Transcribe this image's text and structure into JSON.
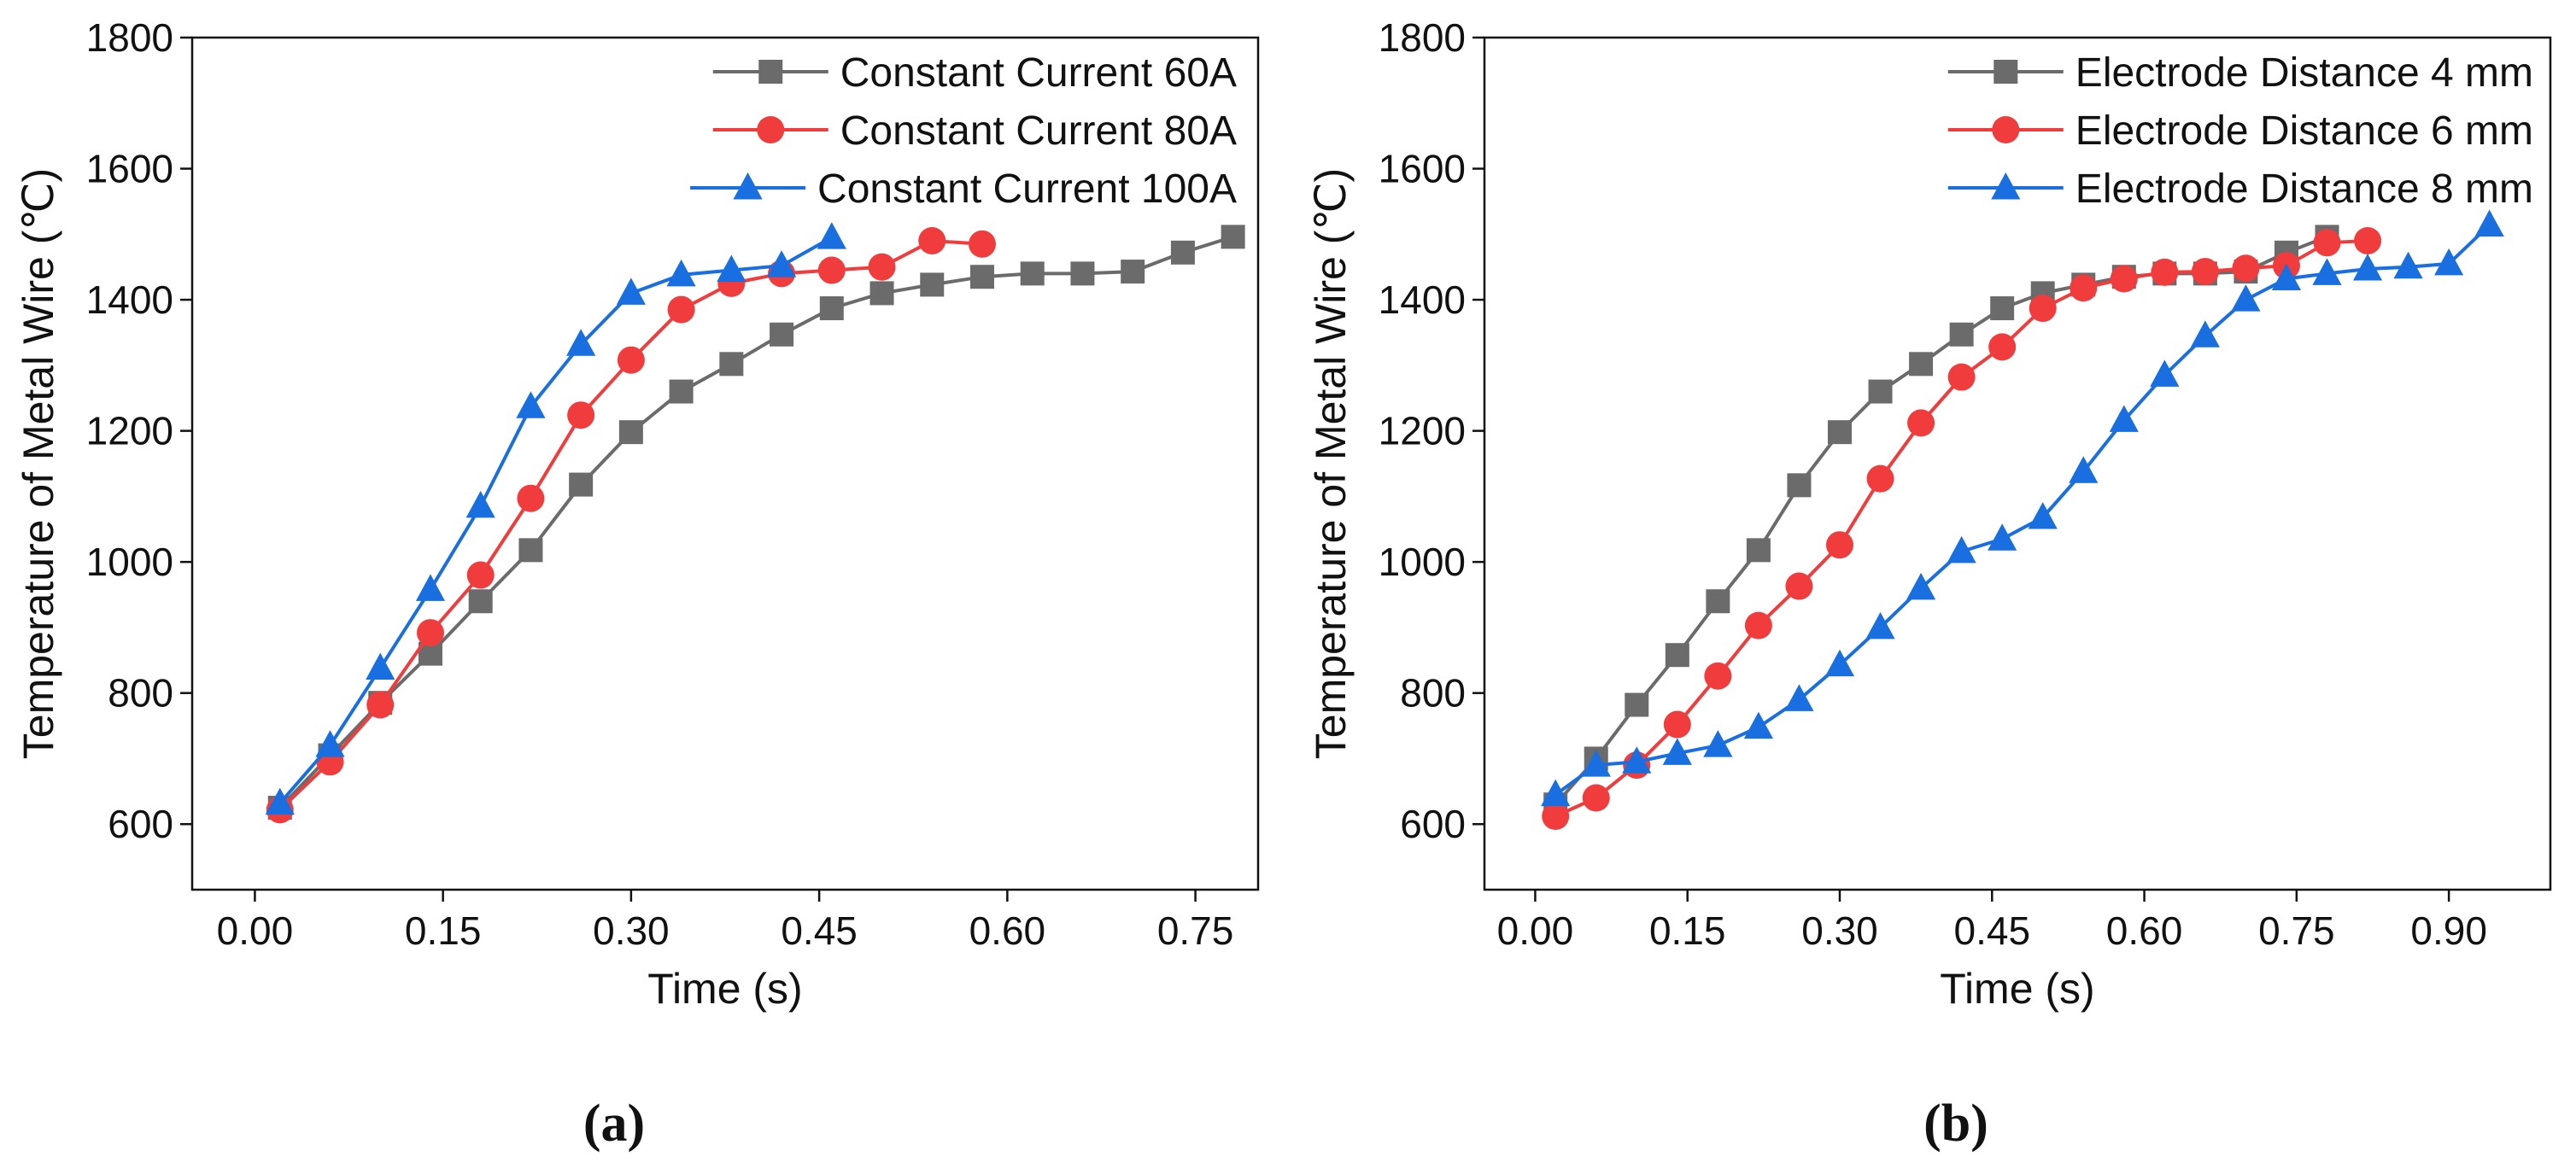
{
  "chart_data": [
    {
      "type": "line",
      "panel_label": "(a)",
      "xlabel": "Time (s)",
      "ylabel": "Temperature of Metal Wire (℃)",
      "xlim": [
        -0.05,
        0.8
      ],
      "ylim": [
        500,
        1800
      ],
      "xticks": [
        0.0,
        0.15,
        0.3,
        0.45,
        0.6,
        0.75
      ],
      "xtick_labels": [
        "0.00",
        "0.15",
        "0.30",
        "0.45",
        "0.60",
        "0.75"
      ],
      "yticks": [
        600,
        800,
        1000,
        1200,
        1400,
        1600,
        1800
      ],
      "ytick_labels": [
        "600",
        "800",
        "1000",
        "1200",
        "1400",
        "1600",
        "1800"
      ],
      "legend_position": "top-right",
      "series": [
        {
          "name": "Constant Current 60A",
          "marker": "square",
          "color": "#6b6b6b",
          "x": [
            0.02,
            0.06,
            0.1,
            0.14,
            0.18,
            0.22,
            0.26,
            0.3,
            0.34,
            0.38,
            0.42,
            0.46,
            0.5,
            0.54,
            0.58,
            0.62,
            0.66,
            0.7,
            0.74,
            0.78
          ],
          "y": [
            625,
            705,
            785,
            860,
            940,
            1018,
            1118,
            1198,
            1260,
            1302,
            1347,
            1387,
            1410,
            1423,
            1435,
            1440,
            1440,
            1443,
            1472,
            1496
          ]
        },
        {
          "name": "Constant Current 80A",
          "marker": "circle",
          "color": "#f03c3c",
          "x": [
            0.02,
            0.06,
            0.1,
            0.14,
            0.18,
            0.22,
            0.26,
            0.3,
            0.34,
            0.38,
            0.42,
            0.46,
            0.5,
            0.54,
            0.58
          ],
          "y": [
            622,
            695,
            782,
            892,
            980,
            1097,
            1224,
            1308,
            1385,
            1425,
            1440,
            1445,
            1450,
            1490,
            1485
          ]
        },
        {
          "name": "Constant Current 100A",
          "marker": "triangle",
          "color": "#1a6fe0",
          "x": [
            0.02,
            0.06,
            0.1,
            0.14,
            0.18,
            0.22,
            0.26,
            0.3,
            0.34,
            0.38,
            0.42,
            0.46
          ],
          "y": [
            632,
            720,
            838,
            958,
            1085,
            1237,
            1332,
            1410,
            1438,
            1445,
            1452,
            1495
          ]
        }
      ]
    },
    {
      "type": "line",
      "panel_label": "(b)",
      "xlabel": "Time (s)",
      "ylabel": "Temperature of Metal Wire (℃)",
      "xlim": [
        -0.05,
        1.0
      ],
      "ylim": [
        500,
        1800
      ],
      "xticks": [
        0.0,
        0.15,
        0.3,
        0.45,
        0.6,
        0.75,
        0.9
      ],
      "xtick_labels": [
        "0.00",
        "0.15",
        "0.30",
        "0.45",
        "0.60",
        "0.75",
        "0.90"
      ],
      "yticks": [
        600,
        800,
        1000,
        1200,
        1400,
        1600,
        1800
      ],
      "ytick_labels": [
        "600",
        "800",
        "1000",
        "1200",
        "1400",
        "1600",
        "1800"
      ],
      "legend_position": "top-right",
      "series": [
        {
          "name": "Electrode Distance 4 mm",
          "marker": "square",
          "color": "#6b6b6b",
          "x": [
            0.02,
            0.06,
            0.1,
            0.14,
            0.18,
            0.22,
            0.26,
            0.3,
            0.34,
            0.38,
            0.42,
            0.46,
            0.5,
            0.54,
            0.58,
            0.62,
            0.66,
            0.7,
            0.74,
            0.78
          ],
          "y": [
            630,
            700,
            782,
            858,
            940,
            1018,
            1117,
            1198,
            1260,
            1302,
            1347,
            1387,
            1410,
            1423,
            1435,
            1440,
            1440,
            1443,
            1472,
            1496
          ]
        },
        {
          "name": "Electrode Distance 6 mm",
          "marker": "circle",
          "color": "#f03c3c",
          "x": [
            0.02,
            0.06,
            0.1,
            0.14,
            0.18,
            0.22,
            0.26,
            0.3,
            0.34,
            0.38,
            0.42,
            0.46,
            0.5,
            0.54,
            0.58,
            0.62,
            0.66,
            0.7,
            0.74,
            0.78,
            0.82
          ],
          "y": [
            612,
            640,
            690,
            752,
            826,
            903,
            963,
            1026,
            1127,
            1212,
            1282,
            1328,
            1387,
            1418,
            1432,
            1442,
            1443,
            1448,
            1452,
            1487,
            1490
          ]
        },
        {
          "name": "Electrode Distance 8 mm",
          "marker": "triangle",
          "color": "#1a6fe0",
          "x": [
            0.02,
            0.06,
            0.1,
            0.14,
            0.18,
            0.22,
            0.26,
            0.3,
            0.34,
            0.38,
            0.42,
            0.46,
            0.5,
            0.54,
            0.58,
            0.62,
            0.66,
            0.7,
            0.74,
            0.78,
            0.82,
            0.86,
            0.9,
            0.94
          ],
          "y": [
            645,
            690,
            695,
            708,
            720,
            748,
            790,
            843,
            900,
            960,
            1016,
            1035,
            1068,
            1138,
            1216,
            1285,
            1345,
            1400,
            1432,
            1440,
            1447,
            1450,
            1455,
            1514
          ]
        }
      ]
    }
  ]
}
